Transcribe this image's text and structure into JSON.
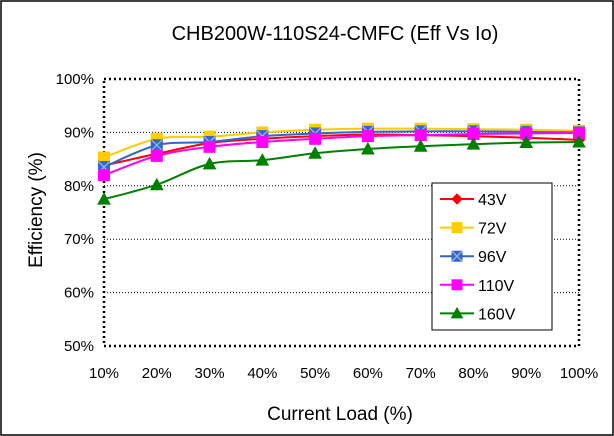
{
  "chart_data": {
    "type": "line",
    "title": "CHB200W-110S24-CMFC (Eff Vs Io)",
    "xlabel": "Current Load (%)",
    "ylabel": "Efficiency (%)",
    "x": [
      "10%",
      "20%",
      "30%",
      "40%",
      "50%",
      "60%",
      "70%",
      "80%",
      "90%",
      "100%"
    ],
    "y_ticks": [
      "50%",
      "60%",
      "70%",
      "80%",
      "90%",
      "100%"
    ],
    "ylim": [
      50,
      100
    ],
    "grid": "horizontal dotted",
    "legend": "right",
    "series": [
      {
        "name": "43V",
        "color": "#ff0000",
        "marker": "diamond",
        "values": [
          83.8,
          86.0,
          88.0,
          88.8,
          89.3,
          89.6,
          89.5,
          89.3,
          89.0,
          88.6
        ]
      },
      {
        "name": "72V",
        "color": "#ffcc00",
        "marker": "square",
        "values": [
          85.3,
          88.8,
          89.2,
          90.0,
          90.5,
          90.7,
          90.7,
          90.6,
          90.5,
          90.3
        ]
      },
      {
        "name": "96V",
        "color": "#3366cc",
        "marker": "x-square",
        "values": [
          83.5,
          87.6,
          88.2,
          89.3,
          89.8,
          90.1,
          90.2,
          90.2,
          90.1,
          90.0
        ]
      },
      {
        "name": "110V",
        "color": "#ff00ff",
        "marker": "square",
        "values": [
          82.0,
          85.6,
          87.3,
          88.2,
          88.8,
          89.3,
          89.5,
          89.7,
          89.8,
          89.9
        ]
      },
      {
        "name": "160V",
        "color": "#008000",
        "marker": "triangle",
        "values": [
          77.5,
          80.2,
          84.1,
          84.8,
          86.1,
          86.9,
          87.4,
          87.8,
          88.1,
          88.2
        ]
      }
    ]
  }
}
